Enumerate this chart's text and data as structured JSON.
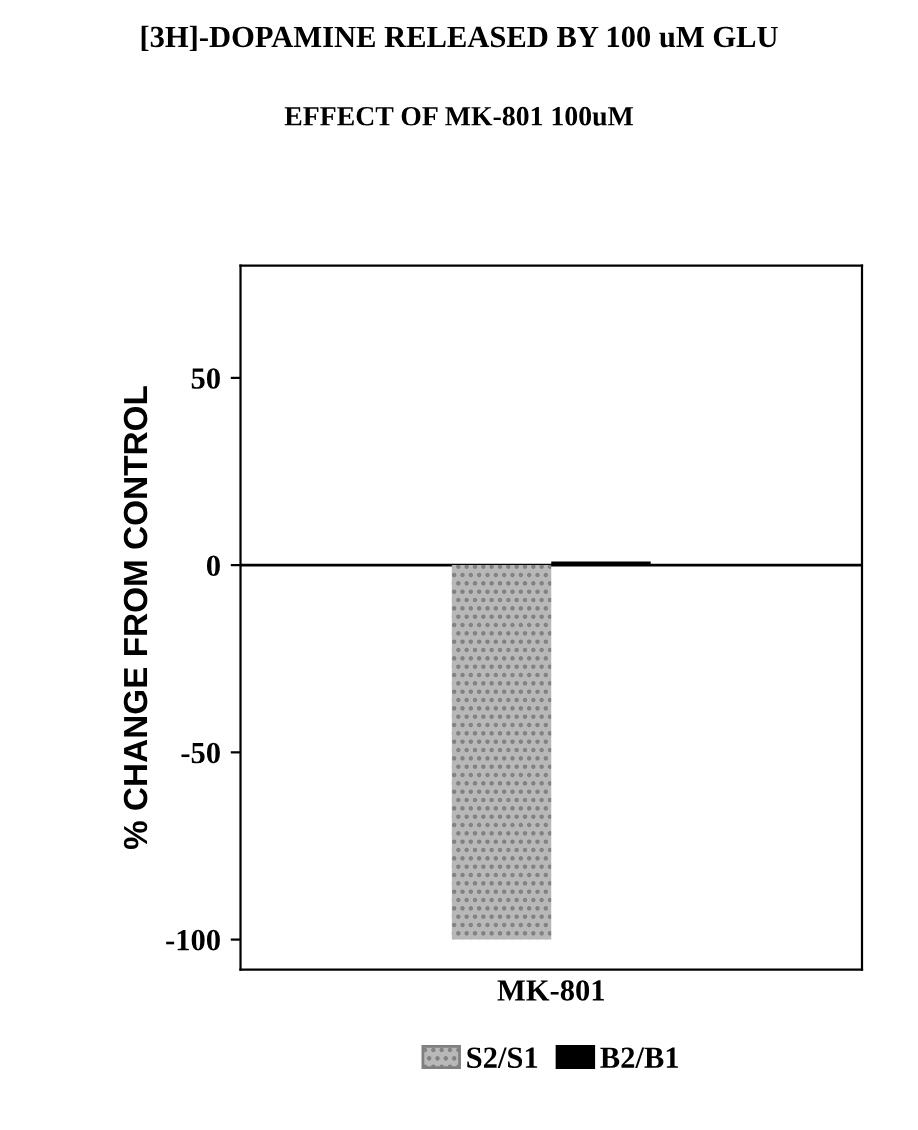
{
  "chart_data": {
    "type": "bar",
    "title": "[3H]-DOPAMINE RELEASED BY 100 uM GLU",
    "subtitle": "EFFECT OF MK-801 100uM",
    "ylabel": "% CHANGE FROM CONTROL",
    "categories": [
      "MK-801"
    ],
    "series": [
      {
        "name": "S2/S1",
        "color": "#b8b8b8",
        "values": [
          -100
        ]
      },
      {
        "name": "B2/B1",
        "color": "#000000",
        "values": [
          1
        ]
      }
    ],
    "ref_lines": [
      {
        "axis": "y",
        "value": 0,
        "color": "#000000"
      }
    ],
    "ylim": [
      -108,
      80
    ],
    "yticks": [
      -100,
      -50,
      0,
      50
    ],
    "grid": false,
    "legend": "bottom"
  }
}
